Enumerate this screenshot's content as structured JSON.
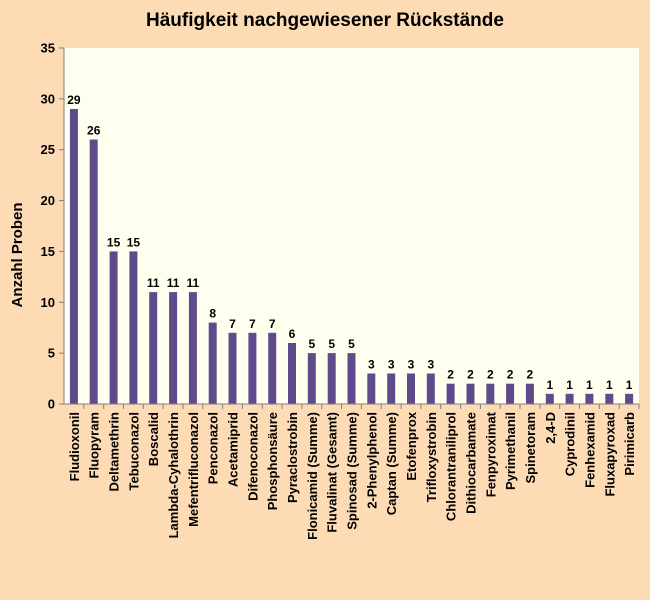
{
  "chart_data": {
    "type": "bar",
    "title": "Häufigkeit nachgewiesener Rückstände",
    "xlabel": "",
    "ylabel": "Anzahl Proben",
    "ylim": [
      0,
      35
    ],
    "yticks": [
      0,
      5,
      10,
      15,
      20,
      25,
      30,
      35
    ],
    "grid": false,
    "legend": "none",
    "colors": {
      "background": "#fddbb4",
      "plot_area": "#fffff0",
      "bar": "#5f4b8b",
      "axis": "#7f7f7f"
    },
    "categories": [
      "Fludioxonil",
      "Fluopyram",
      "Deltamethrin",
      "Tebuconazol",
      "Boscalid",
      "Lambda-Cyhalothrin",
      "Mefentrifluconazol",
      "Penconazol",
      "Acetamiprid",
      "Difenoconazol",
      "Phosphonsäure",
      "Pyraclostrobin",
      "Flonicamid (Summe)",
      "Fluvalinat (Gesamt)",
      "Spinosad (Summe)",
      "2-Phenylphenol",
      "Captan (Summe)",
      "Etofenprox",
      "Trifloxystrobin",
      "Chlorantraniliprol",
      "Dithiocarbamate",
      "Fenpyroximat",
      "Pyrimethanil",
      "Spinetoram",
      "2,4-D",
      "Cyprodinil",
      "Fenhexamid",
      "Fluxapyroxad",
      "Pirimicarb"
    ],
    "values": [
      29,
      26,
      15,
      15,
      11,
      11,
      11,
      8,
      7,
      7,
      7,
      6,
      5,
      5,
      5,
      3,
      3,
      3,
      3,
      2,
      2,
      2,
      2,
      2,
      1,
      1,
      1,
      1,
      1
    ],
    "data_labels": [
      "29",
      "26",
      "15",
      "15",
      "11",
      "11",
      "11",
      "8",
      "7",
      "7",
      "7",
      "6",
      "5",
      "5",
      "5",
      "3",
      "3",
      "3",
      "3",
      "2",
      "2",
      "2",
      "2",
      "2",
      "1",
      "1",
      "1",
      "1",
      "1"
    ]
  }
}
